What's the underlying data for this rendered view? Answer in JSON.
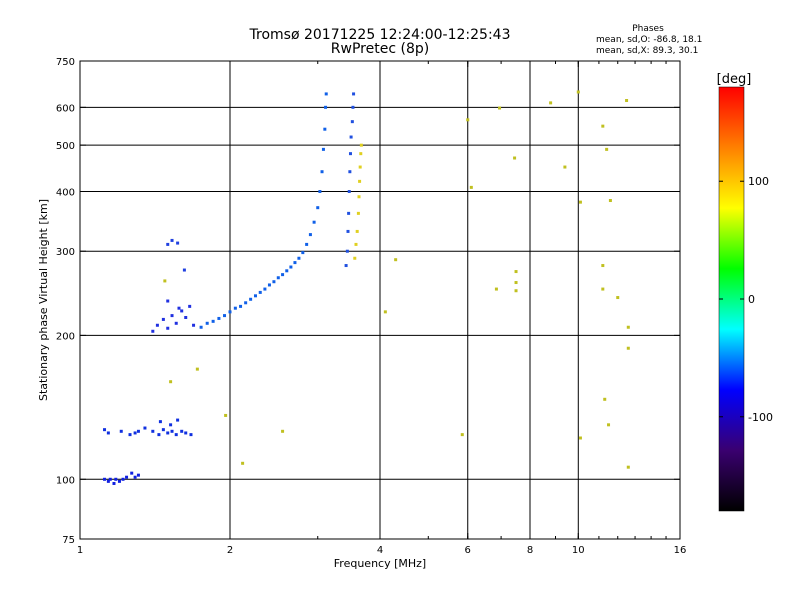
{
  "chart_data": {
    "type": "scatter",
    "title": "Tromsø 20171225 12:24:00-12:25:43",
    "subtitle": "RwPretec (8p)",
    "xlabel": "Frequency [MHz]",
    "ylabel": "Stationary phase Virtual Height [km]",
    "x_scale": "log",
    "y_scale": "log",
    "xlim": [
      1,
      16
    ],
    "ylim": [
      75,
      750
    ],
    "x_ticks": [
      1,
      2,
      4,
      6,
      8,
      10,
      16
    ],
    "x_tick_labels": [
      "1",
      "2",
      "4",
      "6",
      "8",
      "10",
      "16"
    ],
    "x_gridlines": [
      2,
      4,
      6,
      8,
      10
    ],
    "y_ticks": [
      75,
      100,
      200,
      300,
      400,
      500,
      600,
      750
    ],
    "y_tick_labels": [
      "75",
      "100",
      "200",
      "300",
      "400",
      "500",
      "600",
      "750"
    ],
    "y_gridlines": [
      100,
      200,
      300,
      400,
      500,
      600
    ],
    "grid": true,
    "stats": {
      "heading": "Phases",
      "line_o": "mean, sd,O:  -86.8, 18.1",
      "line_x": "mean, sd,X:  89.3, 30.1"
    },
    "colorbar": {
      "label": "[deg]",
      "range": [
        -180,
        180
      ],
      "ticks": [
        100,
        0,
        -100
      ],
      "tick_labels": [
        "100",
        "0",
        "-100"
      ],
      "palette": "rainbow",
      "stops": [
        "#000000",
        "#3a0070",
        "#0000ff",
        "#00ffff",
        "#00ff00",
        "#ffff00",
        "#ff8000",
        "#ff0000"
      ]
    },
    "series": [
      {
        "group": "cluster-100km",
        "color": "#1020e0",
        "points": [
          [
            1.12,
            100
          ],
          [
            1.14,
            99
          ],
          [
            1.15,
            100
          ],
          [
            1.17,
            98
          ],
          [
            1.18,
            100
          ],
          [
            1.2,
            99
          ],
          [
            1.22,
            100
          ],
          [
            1.24,
            101
          ],
          [
            1.27,
            103
          ],
          [
            1.29,
            101
          ],
          [
            1.31,
            102
          ]
        ]
      },
      {
        "group": "cluster-130km",
        "color": "#1030e0",
        "points": [
          [
            1.12,
            127
          ],
          [
            1.14,
            125
          ],
          [
            1.21,
            126
          ],
          [
            1.26,
            124
          ],
          [
            1.29,
            125
          ],
          [
            1.31,
            126
          ],
          [
            1.35,
            128
          ],
          [
            1.4,
            126
          ],
          [
            1.44,
            124
          ],
          [
            1.47,
            127
          ],
          [
            1.5,
            125
          ],
          [
            1.53,
            126
          ],
          [
            1.56,
            124
          ],
          [
            1.6,
            126
          ],
          [
            1.63,
            125
          ],
          [
            1.67,
            124
          ],
          [
            1.45,
            132
          ],
          [
            1.52,
            130
          ],
          [
            1.57,
            133
          ]
        ]
      },
      {
        "group": "cluster-210km",
        "color": "#2030e0",
        "points": [
          [
            1.4,
            204
          ],
          [
            1.43,
            210
          ],
          [
            1.47,
            216
          ],
          [
            1.5,
            207
          ],
          [
            1.53,
            220
          ],
          [
            1.56,
            212
          ],
          [
            1.6,
            225
          ],
          [
            1.63,
            218
          ],
          [
            1.66,
            230
          ],
          [
            1.69,
            210
          ],
          [
            1.5,
            236
          ],
          [
            1.58,
            228
          ]
        ]
      },
      {
        "group": "cluster-310km",
        "color": "#2040e0",
        "points": [
          [
            1.5,
            310
          ],
          [
            1.53,
            316
          ],
          [
            1.57,
            312
          ],
          [
            1.62,
            274
          ]
        ]
      },
      {
        "group": "main-trace",
        "color": "#1060e8",
        "points": [
          [
            1.75,
            208
          ],
          [
            1.8,
            212
          ],
          [
            1.85,
            214
          ],
          [
            1.9,
            217
          ],
          [
            1.95,
            220
          ],
          [
            2.0,
            224
          ],
          [
            2.05,
            228
          ],
          [
            2.1,
            230
          ],
          [
            2.15,
            234
          ],
          [
            2.2,
            238
          ],
          [
            2.25,
            242
          ],
          [
            2.3,
            246
          ],
          [
            2.35,
            250
          ],
          [
            2.4,
            255
          ],
          [
            2.45,
            259
          ],
          [
            2.5,
            264
          ],
          [
            2.55,
            268
          ],
          [
            2.6,
            273
          ],
          [
            2.65,
            278
          ],
          [
            2.7,
            284
          ],
          [
            2.75,
            290
          ],
          [
            2.8,
            298
          ],
          [
            2.85,
            310
          ],
          [
            2.9,
            325
          ],
          [
            2.95,
            345
          ],
          [
            3.0,
            370
          ],
          [
            3.03,
            400
          ],
          [
            3.06,
            440
          ],
          [
            3.08,
            490
          ],
          [
            3.1,
            540
          ],
          [
            3.11,
            600
          ],
          [
            3.12,
            640
          ]
        ]
      },
      {
        "group": "trace-3.5MHz",
        "color": "#2050e0",
        "points": [
          [
            3.42,
            280
          ],
          [
            3.44,
            300
          ],
          [
            3.45,
            330
          ],
          [
            3.46,
            360
          ],
          [
            3.47,
            400
          ],
          [
            3.48,
            440
          ],
          [
            3.49,
            480
          ],
          [
            3.5,
            520
          ],
          [
            3.52,
            560
          ],
          [
            3.53,
            600
          ],
          [
            3.54,
            640
          ]
        ]
      },
      {
        "group": "trace-3.6MHz-yellow",
        "color": "#e0d020",
        "points": [
          [
            3.56,
            290
          ],
          [
            3.58,
            310
          ],
          [
            3.6,
            330
          ],
          [
            3.62,
            360
          ],
          [
            3.63,
            390
          ],
          [
            3.64,
            420
          ],
          [
            3.65,
            450
          ],
          [
            3.66,
            480
          ],
          [
            3.67,
            500
          ]
        ]
      },
      {
        "group": "scattered",
        "color": "#c0c020",
        "points": [
          [
            1.48,
            260
          ],
          [
            1.52,
            160
          ],
          [
            1.72,
            170
          ],
          [
            1.96,
            136
          ],
          [
            2.12,
            108
          ],
          [
            2.55,
            126
          ],
          [
            4.1,
            224
          ],
          [
            4.3,
            288
          ],
          [
            5.85,
            124
          ],
          [
            6.0,
            565
          ],
          [
            6.1,
            408
          ],
          [
            6.85,
            250
          ],
          [
            6.95,
            598
          ],
          [
            7.45,
            470
          ],
          [
            7.5,
            272
          ],
          [
            7.5,
            258
          ],
          [
            7.5,
            248
          ],
          [
            8.8,
            613
          ],
          [
            9.4,
            450
          ],
          [
            10.0,
            646
          ],
          [
            10.1,
            380
          ],
          [
            10.1,
            122
          ],
          [
            11.2,
            548
          ],
          [
            11.2,
            280
          ],
          [
            11.2,
            250
          ],
          [
            11.3,
            147
          ],
          [
            11.4,
            490
          ],
          [
            11.5,
            130
          ],
          [
            11.6,
            383
          ],
          [
            12.0,
            240
          ],
          [
            12.5,
            620
          ],
          [
            12.6,
            106
          ],
          [
            12.6,
            208
          ],
          [
            12.6,
            188
          ]
        ]
      }
    ]
  }
}
